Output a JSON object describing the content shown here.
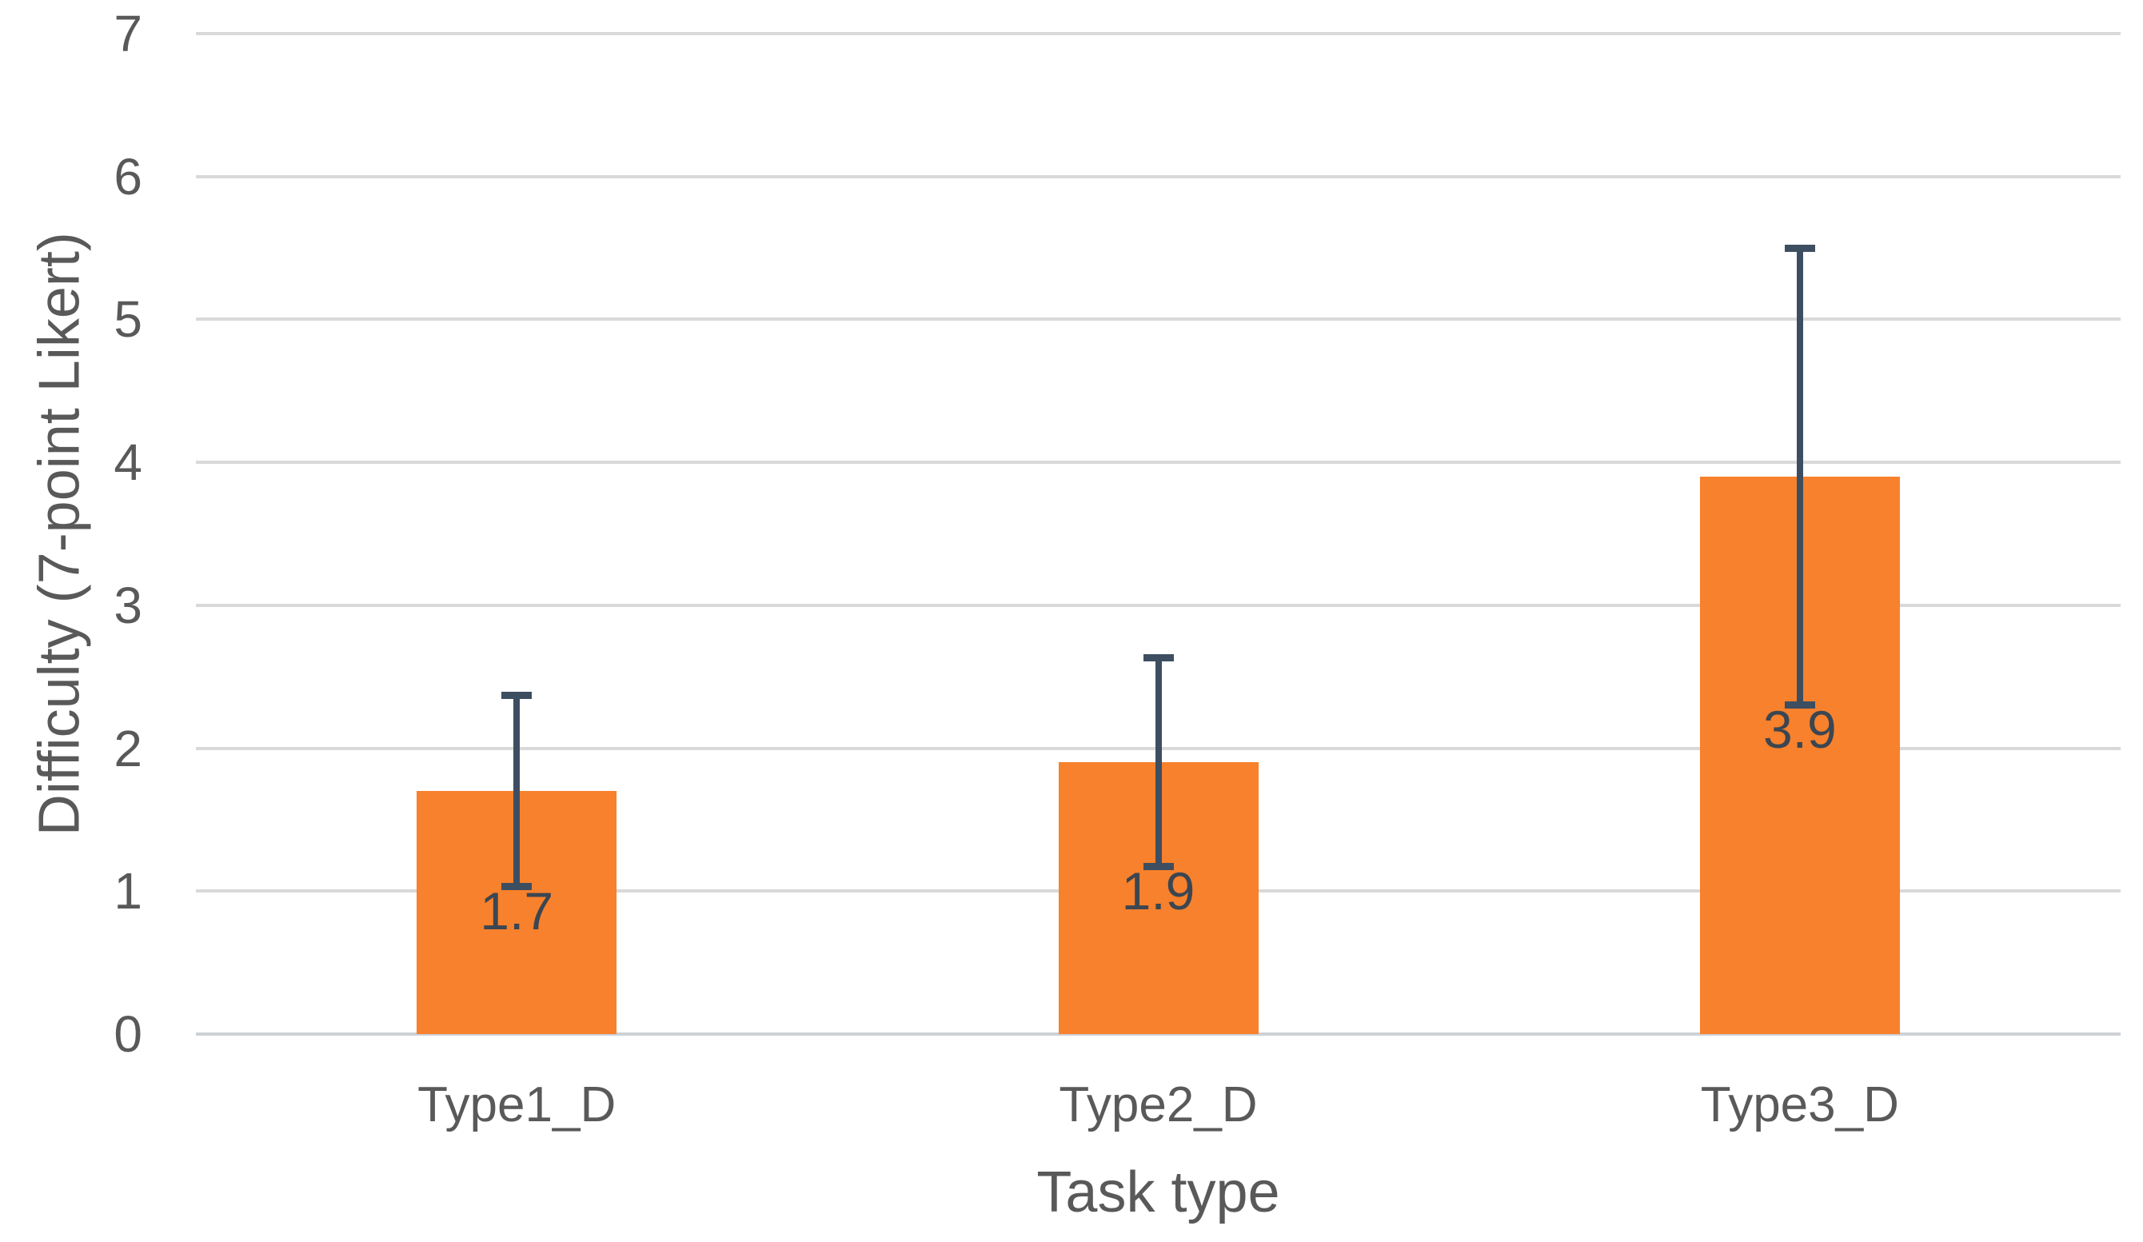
{
  "chart_data": {
    "type": "bar",
    "categories": [
      "Type1_D",
      "Type2_D",
      "Type3_D"
    ],
    "values": [
      1.7,
      1.9,
      3.9
    ],
    "data_labels": [
      "1.7",
      "1.9",
      "3.9"
    ],
    "error_bars": {
      "low": [
        1.03,
        1.17,
        2.3
      ],
      "high": [
        2.37,
        2.63,
        5.5
      ]
    },
    "xlabel": "Task type",
    "ylabel": "Difficulty (7-point Likert)",
    "ylim": [
      0,
      7
    ],
    "yticks": [
      0,
      1,
      2,
      3,
      4,
      5,
      6,
      7
    ],
    "grid": true,
    "legend_position": "none",
    "colors": {
      "bar": "#F7812C",
      "error_bar": "#3E4E61",
      "data_label": "#3B4652",
      "tick_label": "#595959",
      "axis_title": "#595959",
      "gridline": "#D9D9D9",
      "baseline": "#CDD1D5",
      "background": "#FFFFFF"
    }
  }
}
